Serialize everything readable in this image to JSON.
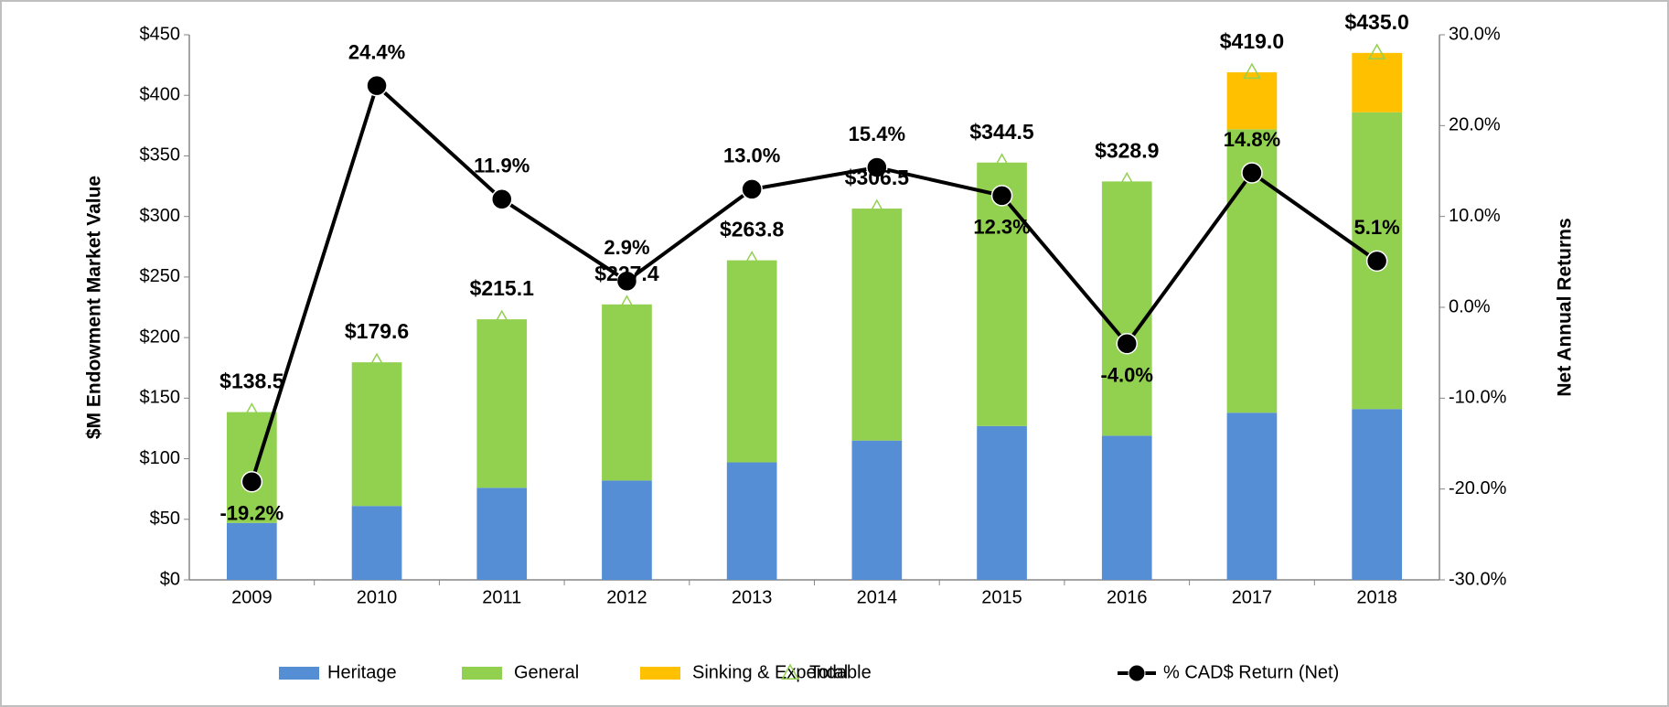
{
  "chart_data": {
    "type": "bar",
    "categories": [
      "2009",
      "2010",
      "2011",
      "2012",
      "2013",
      "2014",
      "2015",
      "2016",
      "2017",
      "2018"
    ],
    "ylabel": "$M Endowment Market Value",
    "y2label": "Net Annual Returns",
    "ylim": [
      0,
      450
    ],
    "yticks": [
      {
        "value": 0,
        "label": "$0"
      },
      {
        "value": 50,
        "label": "$50"
      },
      {
        "value": 100,
        "label": "$100"
      },
      {
        "value": 150,
        "label": "$150"
      },
      {
        "value": 200,
        "label": "$200"
      },
      {
        "value": 250,
        "label": "$250"
      },
      {
        "value": 300,
        "label": "$300"
      },
      {
        "value": 350,
        "label": "$350"
      },
      {
        "value": 400,
        "label": "$400"
      },
      {
        "value": 450,
        "label": "$450"
      }
    ],
    "y2lim": [
      -30,
      30
    ],
    "y2ticks": [
      {
        "value": -30,
        "label": "-30.0%"
      },
      {
        "value": -20,
        "label": "-20.0%"
      },
      {
        "value": -10,
        "label": "-10.0%"
      },
      {
        "value": 0,
        "label": "0.0%"
      },
      {
        "value": 10,
        "label": "10.0%"
      },
      {
        "value": 20,
        "label": "20.0%"
      },
      {
        "value": 30,
        "label": "30.0%"
      }
    ],
    "series": [
      {
        "name": "Heritage",
        "type": "bar",
        "color": "#558ed5",
        "values": [
          47,
          61,
          76,
          82,
          97,
          115,
          127,
          119,
          138,
          141
        ]
      },
      {
        "name": "General",
        "type": "bar",
        "color": "#92d050",
        "values": [
          91.5,
          118.6,
          139.1,
          145.4,
          166.8,
          191.5,
          217.5,
          209.9,
          234,
          245
        ]
      },
      {
        "name": "Sinking & Expendable",
        "type": "bar",
        "color": "#ffc000",
        "values": [
          null,
          null,
          null,
          null,
          null,
          null,
          null,
          null,
          47,
          49
        ]
      },
      {
        "name": "Total",
        "type": "marker",
        "color": "#92d050",
        "values": [
          138.5,
          179.6,
          215.1,
          227.4,
          263.8,
          306.5,
          344.5,
          328.9,
          419.0,
          435.0
        ],
        "value_labels": [
          "$138.5",
          "$179.6",
          "$215.1",
          "$227.4",
          "$263.8",
          "$306.5",
          "$344.5",
          "$328.9",
          "$419.0",
          "$435.0"
        ]
      },
      {
        "name": "% CAD$ Return (Net)",
        "type": "line",
        "axis": "y2",
        "color": "#000000",
        "values": [
          -19.2,
          24.4,
          11.9,
          2.9,
          13.0,
          15.4,
          12.3,
          -4.0,
          14.8,
          5.1
        ],
        "value_labels": [
          "-19.2%",
          "24.4%",
          "11.9%",
          "2.9%",
          "13.0%",
          "15.4%",
          "12.3%",
          "-4.0%",
          "14.8%",
          "5.1%"
        ]
      }
    ]
  }
}
